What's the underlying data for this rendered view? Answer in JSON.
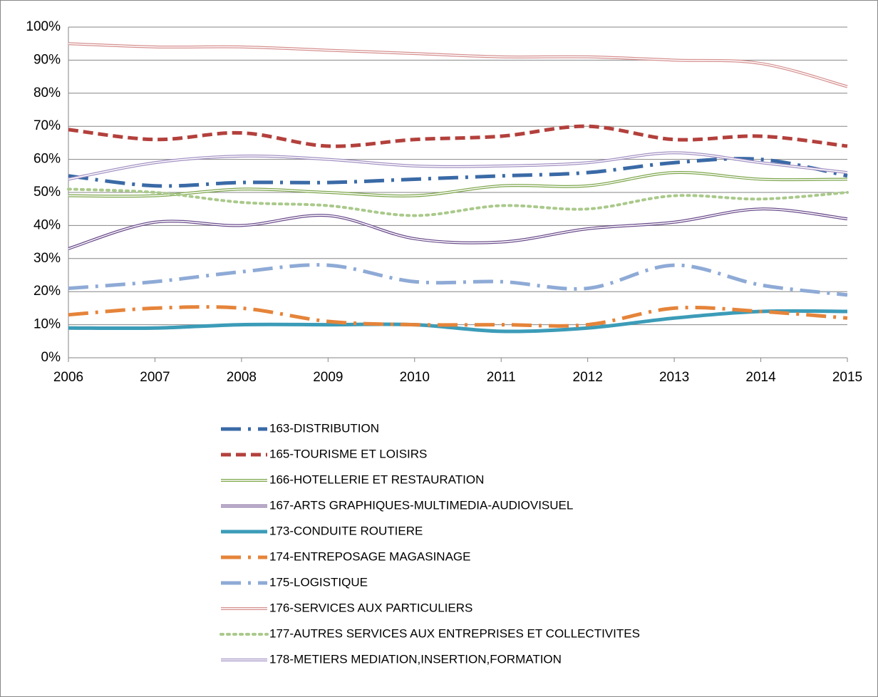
{
  "chart_data": {
    "type": "line",
    "x": [
      2006,
      2007,
      2008,
      2009,
      2010,
      2011,
      2012,
      2013,
      2014,
      2015
    ],
    "xlim": [
      2006,
      2015
    ],
    "xticks": [
      2006,
      2007,
      2008,
      2009,
      2010,
      2011,
      2012,
      2013,
      2014,
      2015
    ],
    "ylim": [
      0,
      100
    ],
    "yticks": [
      {
        "value": 0,
        "label": "0%"
      },
      {
        "value": 10,
        "label": "10%"
      },
      {
        "value": 20,
        "label": "20%"
      },
      {
        "value": 30,
        "label": "30%"
      },
      {
        "value": 40,
        "label": "40%"
      },
      {
        "value": 50,
        "label": "50%"
      },
      {
        "value": 60,
        "label": "60%"
      },
      {
        "value": 70,
        "label": "70%"
      },
      {
        "value": 80,
        "label": "80%"
      },
      {
        "value": 90,
        "label": "90%"
      },
      {
        "value": 100,
        "label": "100%"
      }
    ],
    "grid": true,
    "legend": "bottom",
    "smooth": true,
    "series": [
      {
        "name": "163-DISTRIBUTION",
        "color": "#3a6aa6",
        "style": "dash-dot",
        "values": [
          55,
          52,
          53,
          53,
          54,
          55,
          56,
          59,
          60,
          55
        ]
      },
      {
        "name": "165-TOURISME ET LOISIRS",
        "color": "#b3403c",
        "style": "dash",
        "values": [
          69,
          66,
          68,
          64,
          66,
          67,
          70,
          66,
          67,
          64
        ]
      },
      {
        "name": "166-HOTELLERIE ET RESTAURATION",
        "color": "#7ea64c",
        "style": "double",
        "values": [
          49,
          49,
          51,
          50,
          49,
          52,
          52,
          56,
          54,
          54
        ]
      },
      {
        "name": "167-ARTS GRAPHIQUES-MULTIMEDIA-AUDIOVISUEL",
        "color": "#6b4c8c",
        "style": "double",
        "values": [
          33,
          41,
          40,
          43,
          36,
          35,
          39,
          41,
          45,
          42
        ]
      },
      {
        "name": "173-CONDUITE ROUTIERE",
        "color": "#3c9cb8",
        "style": "solid",
        "values": [
          9,
          9,
          10,
          10,
          10,
          8,
          9,
          12,
          14,
          14
        ]
      },
      {
        "name": "174-ENTREPOSAGE MAGASINAGE",
        "color": "#e5843a",
        "style": "dash-dot",
        "values": [
          13,
          15,
          15,
          11,
          10,
          10,
          10,
          15,
          14,
          12
        ]
      },
      {
        "name": "175-LOGISTIQUE",
        "color": "#8eaad6",
        "style": "dash-dot",
        "values": [
          21,
          23,
          26,
          28,
          23,
          23,
          21,
          28,
          22,
          19
        ]
      },
      {
        "name": "176-SERVICES AUX PARTICULIERS",
        "color": "#d69090",
        "style": "double",
        "values": [
          95,
          94,
          94,
          93,
          92,
          91,
          91,
          90,
          89,
          82
        ]
      },
      {
        "name": "177-AUTRES SERVICES AUX ENTREPRISES ET COLLECTIVITES",
        "color": "#a9c98a",
        "style": "dot",
        "values": [
          51,
          50,
          47,
          46,
          43,
          46,
          45,
          49,
          48,
          50
        ]
      },
      {
        "name": "178-METIERS MEDIATION,INSERTION,FORMATION",
        "color": "#a391c3",
        "style": "double",
        "values": [
          54,
          59,
          61,
          60,
          58,
          58,
          59,
          62,
          59,
          56
        ]
      }
    ]
  }
}
